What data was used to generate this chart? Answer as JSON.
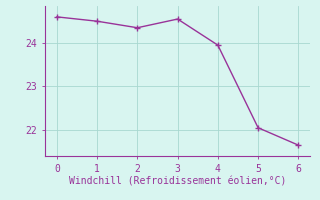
{
  "x": [
    0,
    1,
    2,
    3,
    4,
    5,
    6
  ],
  "y": [
    24.6,
    24.5,
    24.35,
    24.55,
    23.95,
    22.05,
    21.65
  ],
  "line_color": "#993399",
  "marker": "+",
  "marker_size": 4,
  "marker_linewidth": 1.0,
  "background_color": "#d8f5f0",
  "grid_color": "#a8d8d0",
  "xlabel": "Windchill (Refroidissement éolien,°C)",
  "xlabel_color": "#993399",
  "tick_color": "#993399",
  "spine_color": "#993399",
  "ylim": [
    21.4,
    24.85
  ],
  "xlim": [
    -0.3,
    6.3
  ],
  "yticks": [
    22,
    23,
    24
  ],
  "xticks": [
    0,
    1,
    2,
    3,
    4,
    5,
    6
  ],
  "line_width": 1.0,
  "tick_labelsize": 7,
  "xlabel_fontsize": 7
}
